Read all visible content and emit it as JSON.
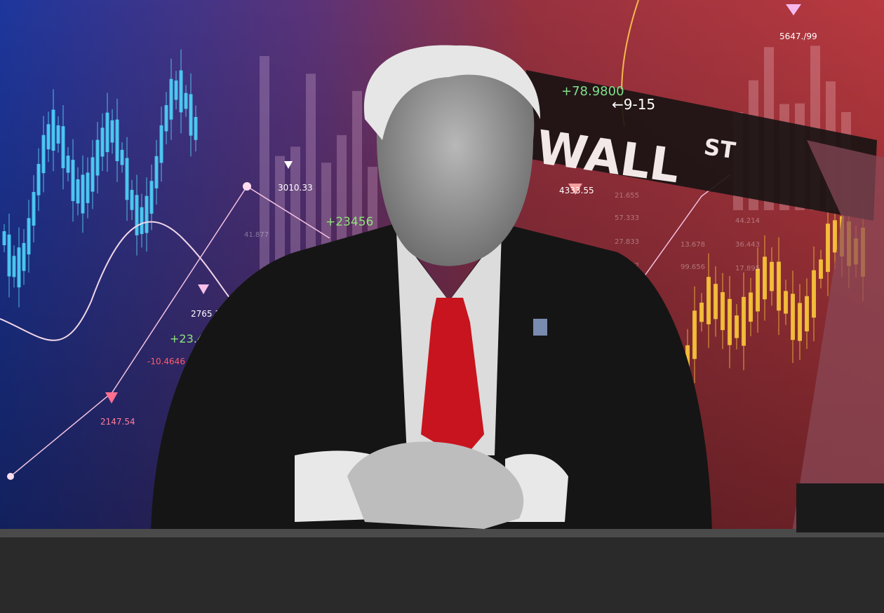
{
  "street_sign": {
    "name": "WALL",
    "suffix": "ST",
    "direction": "←9-15",
    "ticker": "+78.9800"
  },
  "overlay_labels": [
    "5647./99",
    "3010.33",
    "+23456",
    "4333.55",
    "2765.31",
    "+23.456",
    "-10.4646",
    "2147.54"
  ],
  "faint_numbers": [
    "21.655",
    "57.333",
    "27.833",
    "23.532",
    "44.214",
    "36.443",
    "17.895",
    "13.678",
    "99.656",
    "41.877"
  ]
}
